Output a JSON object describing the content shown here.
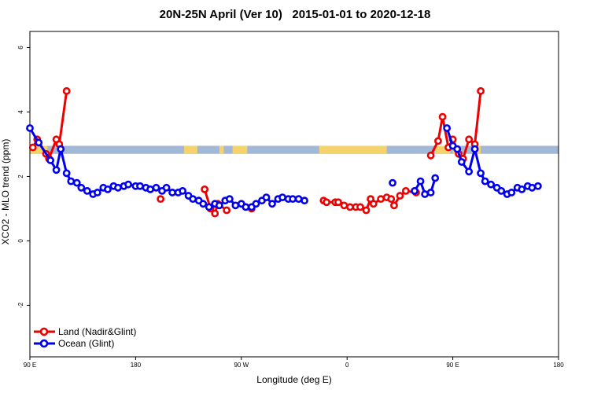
{
  "chart_data": {
    "type": "line",
    "title": "20N-25N April (Ver 10)   2015-01-01 to 2020-12-18",
    "xlabel": "Longitude (deg E)",
    "ylabel": "XCO2 - MLO trend (ppm)",
    "xlim": [
      90,
      450
    ],
    "ylim": [
      -3.6,
      6.5
    ],
    "x_ticks": [
      {
        "value": 90,
        "label": "90 E"
      },
      {
        "value": 162,
        "label": "180"
      },
      {
        "value": 234,
        "label": "90 W"
      },
      {
        "value": 306,
        "label": "0"
      },
      {
        "value": 378,
        "label": "90 E"
      },
      {
        "value": 450,
        "label": "180"
      }
    ],
    "y_ticks": [
      {
        "value": -2,
        "label": "-2"
      },
      {
        "value": 0,
        "label": "0"
      },
      {
        "value": 2,
        "label": "2"
      },
      {
        "value": 4,
        "label": "4"
      },
      {
        "value": 6,
        "label": "6"
      }
    ],
    "legend_position": "bottom-left",
    "map_band": {
      "ymin": 2.7,
      "ymax": 2.95,
      "ocean_color": "#a3b7d6",
      "land_color": "#f5d36c"
    },
    "series": [
      {
        "name": "Land (Nadir&Glint)",
        "color": "#ee0000",
        "segments": [
          [
            [
              92,
              2.9
            ],
            [
              95,
              3.15
            ],
            [
              101,
              2.7
            ],
            [
              103,
              2.55
            ],
            [
              108,
              3.15
            ],
            [
              110,
              3.0
            ],
            [
              115,
              4.65
            ]
          ],
          [
            [
              179,
              1.3
            ]
          ],
          [
            [
              209,
              1.6
            ],
            [
              213,
              1.0
            ],
            [
              216,
              0.85
            ],
            [
              218,
              1.15
            ],
            [
              224,
              0.95
            ]
          ],
          [
            [
              241,
              1.0
            ]
          ],
          [
            [
              290,
              1.25
            ],
            [
              292,
              1.2
            ],
            [
              298,
              1.2
            ],
            [
              300,
              1.2
            ],
            [
              304,
              1.1
            ],
            [
              308,
              1.05
            ],
            [
              312,
              1.05
            ],
            [
              315,
              1.05
            ],
            [
              319,
              0.95
            ],
            [
              322,
              1.3
            ],
            [
              324,
              1.15
            ],
            [
              329,
              1.3
            ],
            [
              333,
              1.35
            ],
            [
              336,
              1.3
            ],
            [
              338,
              1.1
            ],
            [
              342,
              1.4
            ],
            [
              346,
              1.55
            ],
            [
              353,
              1.5
            ]
          ],
          [
            [
              363,
              2.65
            ],
            [
              368,
              3.1
            ],
            [
              371,
              3.85
            ],
            [
              375,
              2.9
            ],
            [
              378,
              3.15
            ],
            [
              382,
              2.7
            ],
            [
              385,
              2.55
            ],
            [
              389,
              3.15
            ],
            [
              393,
              3.0
            ],
            [
              397,
              4.65
            ]
          ]
        ]
      },
      {
        "name": "Ocean (Glint)",
        "color": "#0000ee",
        "segments": [
          [
            [
              90,
              3.5
            ],
            [
              96,
              3.05
            ],
            [
              104,
              2.5
            ],
            [
              108,
              2.2
            ],
            [
              111,
              2.85
            ],
            [
              115,
              2.1
            ],
            [
              118,
              1.85
            ],
            [
              122,
              1.8
            ],
            [
              125,
              1.65
            ],
            [
              129,
              1.55
            ],
            [
              133,
              1.45
            ],
            [
              136,
              1.5
            ],
            [
              140,
              1.65
            ],
            [
              143,
              1.6
            ],
            [
              147,
              1.7
            ],
            [
              150,
              1.65
            ],
            [
              154,
              1.7
            ],
            [
              157,
              1.75
            ],
            [
              162,
              1.7
            ],
            [
              165,
              1.7
            ],
            [
              169,
              1.65
            ],
            [
              172,
              1.6
            ],
            [
              176,
              1.65
            ],
            [
              180,
              1.55
            ],
            [
              183,
              1.65
            ],
            [
              187,
              1.5
            ],
            [
              191,
              1.5
            ],
            [
              194,
              1.55
            ],
            [
              198,
              1.4
            ],
            [
              201,
              1.3
            ],
            [
              205,
              1.25
            ],
            [
              208,
              1.15
            ],
            [
              212,
              1.05
            ],
            [
              216,
              1.15
            ],
            [
              219,
              1.1
            ],
            [
              223,
              1.25
            ],
            [
              226,
              1.3
            ],
            [
              230,
              1.1
            ],
            [
              234,
              1.15
            ],
            [
              237,
              1.05
            ],
            [
              241,
              1.05
            ],
            [
              244,
              1.15
            ],
            [
              248,
              1.25
            ],
            [
              251,
              1.35
            ],
            [
              255,
              1.15
            ],
            [
              259,
              1.3
            ],
            [
              262,
              1.35
            ],
            [
              266,
              1.3
            ],
            [
              269,
              1.3
            ],
            [
              273,
              1.3
            ],
            [
              277,
              1.25
            ]
          ],
          [
            [
              337,
              1.8
            ]
          ],
          [
            [
              352,
              1.55
            ],
            [
              356,
              1.85
            ],
            [
              359,
              1.45
            ],
            [
              363,
              1.5
            ],
            [
              366,
              1.95
            ]
          ],
          [
            [
              374,
              3.5
            ],
            [
              378,
              2.95
            ],
            [
              381,
              2.85
            ],
            [
              384,
              2.45
            ],
            [
              389,
              2.15
            ],
            [
              393,
              2.85
            ],
            [
              397,
              2.1
            ],
            [
              400,
              1.85
            ],
            [
              404,
              1.75
            ],
            [
              408,
              1.65
            ],
            [
              411,
              1.55
            ],
            [
              415,
              1.45
            ],
            [
              418,
              1.5
            ],
            [
              422,
              1.65
            ],
            [
              425,
              1.6
            ],
            [
              429,
              1.7
            ],
            [
              432,
              1.65
            ],
            [
              436,
              1.7
            ]
          ]
        ]
      }
    ]
  }
}
